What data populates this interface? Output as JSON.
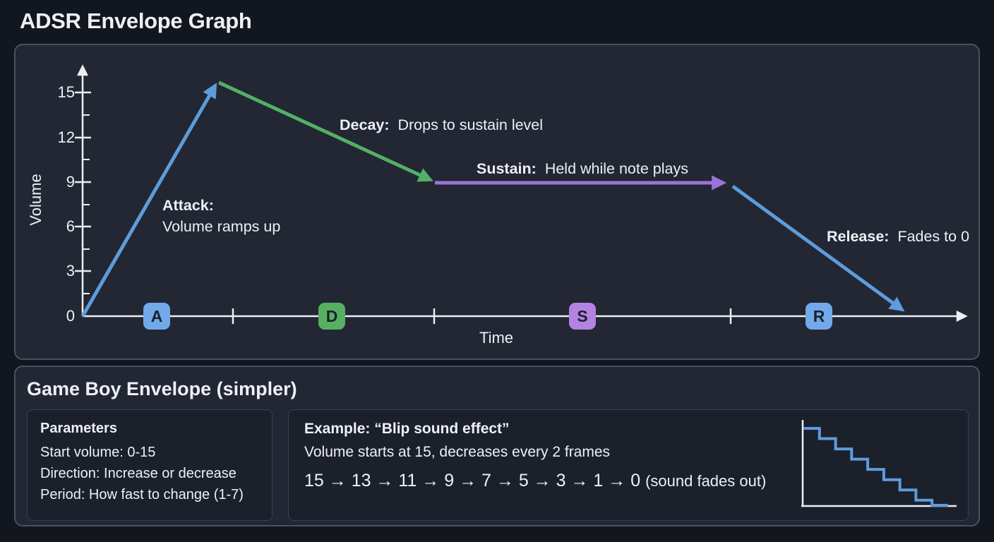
{
  "page": {
    "title": "ADSR Envelope Graph"
  },
  "colors": {
    "bg_page": "#12161E",
    "bg_panel": "#222733",
    "bg_card": "#1B202B",
    "border_panel": "#4A5160",
    "border_card": "#3A4150",
    "text_main": "#EDF0F5",
    "axis_white": "#ECEFF4",
    "attack_blue": "#5E9CDB",
    "decay_green": "#53B066",
    "sustain_purple": "#9C73D9",
    "badge_blue": "#71A9EA",
    "badge_green": "#57B062",
    "badge_purple": "#B383E1",
    "badge_letter": "#1A2230"
  },
  "graph": {
    "y_axis_label": "Volume",
    "x_axis_label": "Time",
    "y_ticks": [
      "15",
      "12",
      "9",
      "6",
      "3",
      "0"
    ],
    "badges": [
      {
        "letter": "A"
      },
      {
        "letter": "D"
      },
      {
        "letter": "S"
      },
      {
        "letter": "R"
      }
    ],
    "labels": {
      "attack": {
        "bold": "Attack:",
        "rest": "Volume ramps up"
      },
      "decay": {
        "bold": "Decay:",
        "rest": "Drops to sustain level"
      },
      "sustain": {
        "bold": "Sustain:",
        "rest": "Held while note plays"
      },
      "release": {
        "bold": "Release:",
        "rest": "Fades to 0"
      }
    }
  },
  "gameboy": {
    "heading": "Game Boy Envelope (simpler)",
    "parameters": {
      "title": "Parameters",
      "lines": [
        "Start volume: 0-15",
        "Direction: Increase or decrease",
        "Period: How fast to change (1-7)"
      ]
    },
    "example": {
      "title": "Example: “Blip sound effect”",
      "subtitle": "Volume starts at 15, decreases every 2 frames",
      "sequence": "15 → 13 → 11 → 9 → 7 → 5 → 3 → 1 → 0",
      "suffix": "(sound fades out)"
    }
  },
  "chart_data": [
    {
      "type": "line",
      "name": "adsr-envelope",
      "title": "ADSR Envelope Graph",
      "xlabel": "Time",
      "ylabel": "Volume",
      "ylim": [
        0,
        16
      ],
      "yticks": [
        0,
        3,
        6,
        9,
        12,
        15
      ],
      "series": [
        {
          "name": "Attack",
          "color": "#5E9CDB",
          "points": [
            [
              0,
              0
            ],
            [
              1,
              15.5
            ]
          ]
        },
        {
          "name": "Decay",
          "color": "#53B066",
          "points": [
            [
              1,
              15.5
            ],
            [
              2.6,
              9
            ]
          ]
        },
        {
          "name": "Sustain",
          "color": "#9C73D9",
          "points": [
            [
              2.6,
              9
            ],
            [
              4.9,
              9
            ]
          ]
        },
        {
          "name": "Release",
          "color": "#5E9CDB",
          "points": [
            [
              4.9,
              9
            ],
            [
              6.2,
              0
            ]
          ]
        }
      ]
    },
    {
      "type": "line",
      "subtype": "step",
      "name": "blip-step-chart",
      "values": [
        15,
        13,
        11,
        9,
        7,
        5,
        3,
        1,
        0
      ],
      "ylim": [
        0,
        15
      ],
      "grid": false,
      "legend": false
    }
  ]
}
